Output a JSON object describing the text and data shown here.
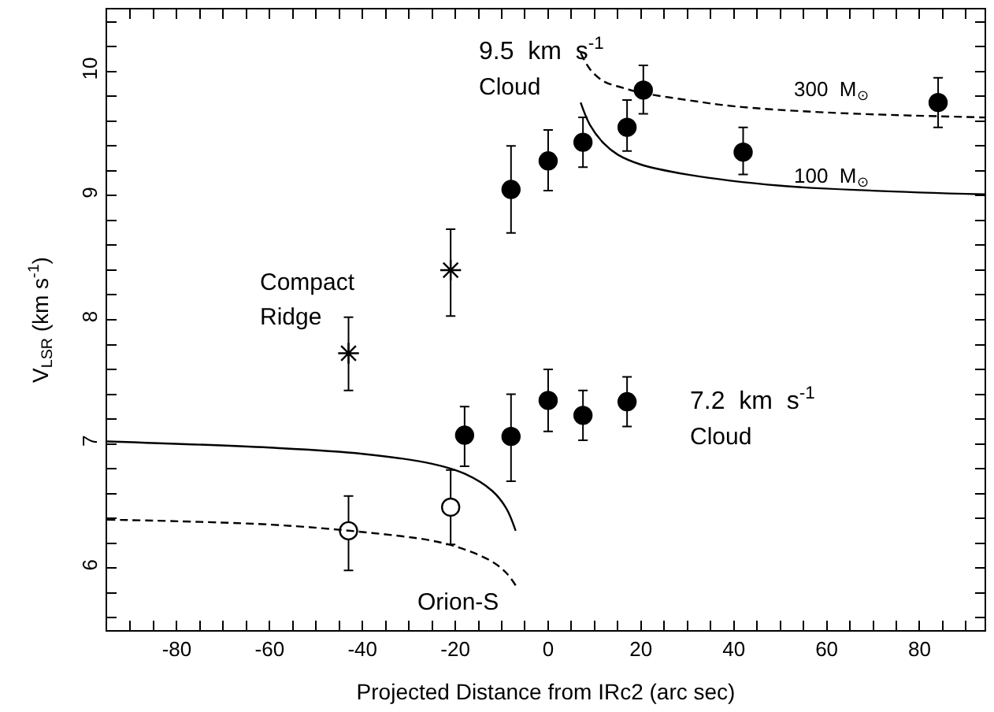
{
  "chart_data": {
    "type": "scatter",
    "xlabel": "Projected Distance from IRc2 (arc sec)",
    "ylabel": "V$_{LSR}$ (km s$^{-1}$)",
    "xlim": [
      -95,
      94
    ],
    "ylim": [
      5.5,
      10.5
    ],
    "xticks": [
      {
        "value": -90,
        "label": null
      },
      {
        "value": -85,
        "label": null
      },
      -80,
      {
        "value": -75,
        "label": null
      },
      {
        "value": -70,
        "label": null
      },
      {
        "value": -65,
        "label": null
      },
      -60,
      {
        "value": -55,
        "label": null
      },
      {
        "value": -50,
        "label": null
      },
      {
        "value": -45,
        "label": null
      },
      -40,
      {
        "value": -35,
        "label": null
      },
      {
        "value": -30,
        "label": null
      },
      {
        "value": -25,
        "label": null
      },
      -20,
      {
        "value": -15,
        "label": null
      },
      {
        "value": -10,
        "label": null
      },
      {
        "value": -5,
        "label": null
      },
      0,
      {
        "value": 5,
        "label": null
      },
      {
        "value": 10,
        "label": null
      },
      {
        "value": 15,
        "label": null
      },
      20,
      {
        "value": 25,
        "label": null
      },
      {
        "value": 30,
        "label": null
      },
      {
        "value": 35,
        "label": null
      },
      40,
      {
        "value": 45,
        "label": null
      },
      {
        "value": 50,
        "label": null
      },
      {
        "value": 55,
        "label": null
      },
      60,
      {
        "value": 65,
        "label": null
      },
      {
        "value": 70,
        "label": null
      },
      {
        "value": 75,
        "label": null
      },
      80,
      {
        "value": 85,
        "label": null
      },
      {
        "value": 90,
        "label": null
      }
    ],
    "yticks": [
      {
        "value": 5.6,
        "label": null
      },
      {
        "value": 5.8,
        "label": null
      },
      6,
      {
        "value": 6.2,
        "label": null
      },
      {
        "value": 6.4,
        "label": null
      },
      {
        "value": 6.6,
        "label": null
      },
      {
        "value": 6.8,
        "label": null
      },
      7,
      {
        "value": 7.2,
        "label": null
      },
      {
        "value": 7.4,
        "label": null
      },
      {
        "value": 7.6,
        "label": null
      },
      {
        "value": 7.8,
        "label": null
      },
      8,
      {
        "value": 8.2,
        "label": null
      },
      {
        "value": 8.4,
        "label": null
      },
      {
        "value": 8.6,
        "label": null
      },
      {
        "value": 8.8,
        "label": null
      },
      9,
      {
        "value": 9.2,
        "label": null
      },
      {
        "value": 9.4,
        "label": null
      },
      {
        "value": 9.6,
        "label": null
      },
      {
        "value": 9.8,
        "label": null
      },
      10,
      {
        "value": 10.2,
        "label": null
      },
      {
        "value": 10.4,
        "label": null
      }
    ],
    "legend": false,
    "series": [
      {
        "marker": "cross",
        "color": "#000000",
        "x": [
          -43,
          -21
        ],
        "values": [
          7.73,
          8.4
        ],
        "errors": [
          [
            7.43,
            8.02
          ],
          [
            8.03,
            8.73
          ]
        ]
      },
      {
        "marker": "circle",
        "color": "#ffffff",
        "x": [
          -43,
          -21
        ],
        "values": [
          6.3,
          6.49
        ],
        "errors": [
          [
            5.98,
            6.58
          ],
          [
            6.19,
            6.79
          ]
        ]
      },
      {
        "marker": "circle",
        "color": "#000000",
        "x": [
          -18,
          -8,
          0,
          7.5,
          17
        ],
        "values": [
          7.07,
          7.06,
          7.35,
          7.23,
          7.34
        ],
        "errors": [
          [
            6.82,
            7.3
          ],
          [
            6.7,
            7.4
          ],
          [
            7.1,
            7.6
          ],
          [
            7.03,
            7.43
          ],
          [
            7.14,
            7.54
          ]
        ]
      },
      {
        "marker": "circle",
        "color": "#000000",
        "x": [
          -8,
          0,
          7.5,
          17,
          20.5,
          42,
          84
        ],
        "values": [
          9.05,
          9.28,
          9.43,
          9.55,
          9.85,
          9.35,
          9.75
        ],
        "errors": [
          [
            8.7,
            9.4
          ],
          [
            9.04,
            9.53
          ],
          [
            9.23,
            9.63
          ],
          [
            9.36,
            9.77
          ],
          [
            9.66,
            10.05
          ],
          [
            9.17,
            9.55
          ],
          [
            9.55,
            9.95
          ]
        ]
      },
      {
        "type": "line",
        "line_style": "solid",
        "color": "#000000",
        "x": [
          -95,
          -60,
          -40,
          -25,
          -18,
          -12,
          -9,
          -7
        ],
        "values": [
          7.02,
          6.97,
          6.92,
          6.84,
          6.76,
          6.62,
          6.48,
          6.3
        ]
      },
      {
        "type": "line",
        "line_style": "dashed",
        "color": "#000000",
        "x": [
          -95,
          -60,
          -40,
          -25,
          -18,
          -12,
          -9,
          -7
        ],
        "values": [
          6.39,
          6.35,
          6.29,
          6.22,
          6.15,
          6.05,
          5.96,
          5.86
        ]
      },
      {
        "type": "line",
        "line_style": "solid",
        "color": "#000000",
        "x": [
          7,
          9,
          12,
          15,
          20,
          30,
          50,
          70,
          94
        ],
        "values": [
          9.75,
          9.57,
          9.42,
          9.33,
          9.25,
          9.17,
          9.08,
          9.04,
          9.01
        ]
      },
      {
        "type": "line",
        "line_style": "dashed",
        "color": "#000000",
        "x": [
          7,
          9,
          12,
          16,
          20,
          30,
          40,
          60,
          94
        ],
        "values": [
          10.15,
          10.02,
          9.92,
          9.87,
          9.83,
          9.77,
          9.72,
          9.67,
          9.63
        ]
      }
    ],
    "annotations": [
      "9.5  km  s$^{-1}$",
      "Cloud",
      "Compact",
      "Ridge",
      "7.2  km  s$^{-1}$",
      "Cloud",
      "Orion-S",
      "300  M$_{⊙}$",
      "100  M$_{⊙}$"
    ]
  }
}
